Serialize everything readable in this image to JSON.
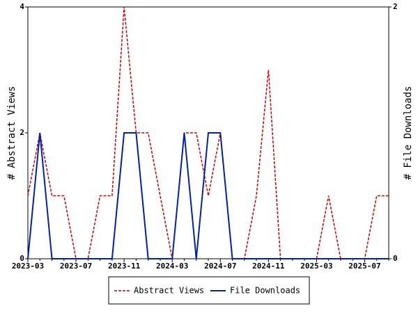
{
  "chart_data": {
    "type": "line",
    "categories": [
      "2023-03",
      null,
      null,
      null,
      "2023-07",
      null,
      null,
      null,
      "2023-11",
      null,
      null,
      null,
      "2024-03",
      null,
      null,
      null,
      "2024-07",
      null,
      null,
      null,
      "2024-11",
      null,
      null,
      null,
      "2025-03",
      null,
      null,
      null,
      "2025-07",
      null,
      null
    ],
    "series": [
      {
        "name": "Abstract Views",
        "color": "#cc0000",
        "dash": true,
        "values": [
          1,
          2,
          1,
          1,
          0,
          0,
          1,
          1,
          4,
          2,
          2,
          1,
          0,
          2,
          2,
          1,
          2,
          0,
          0,
          1,
          3,
          0,
          0,
          0,
          0,
          1,
          0,
          0,
          0,
          1,
          1
        ]
      },
      {
        "name": "File Downloads",
        "color": "#0020b0",
        "axis": "y2",
        "values": [
          0,
          1,
          0,
          0,
          0,
          0,
          0,
          0,
          1,
          1,
          0,
          0,
          0,
          1,
          0,
          1,
          1,
          0,
          0,
          0,
          0,
          0,
          0,
          0,
          0,
          0,
          0,
          0,
          0,
          0,
          0
        ]
      }
    ],
    "ylabel": "# Abstract Views",
    "y2label": "# File Downloads",
    "ylim": [
      0,
      4
    ],
    "yticks": [
      0,
      2,
      4
    ],
    "y2lim": [
      0,
      2
    ],
    "y2ticks": [
      0,
      2
    ],
    "legend": "bottom"
  }
}
